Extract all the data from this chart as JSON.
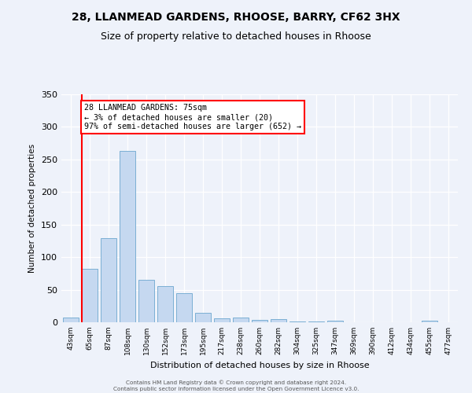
{
  "title": "28, LLANMEAD GARDENS, RHOOSE, BARRY, CF62 3HX",
  "subtitle": "Size of property relative to detached houses in Rhoose",
  "xlabel": "Distribution of detached houses by size in Rhoose",
  "ylabel": "Number of detached properties",
  "bar_labels": [
    "43sqm",
    "65sqm",
    "87sqm",
    "108sqm",
    "130sqm",
    "152sqm",
    "173sqm",
    "195sqm",
    "217sqm",
    "238sqm",
    "260sqm",
    "282sqm",
    "304sqm",
    "325sqm",
    "347sqm",
    "369sqm",
    "390sqm",
    "412sqm",
    "434sqm",
    "455sqm",
    "477sqm"
  ],
  "bar_values": [
    7,
    82,
    129,
    263,
    65,
    56,
    45,
    15,
    6,
    7,
    4,
    5,
    1,
    1,
    2,
    0,
    0,
    0,
    0,
    3,
    0
  ],
  "bar_color": "#c5d8f0",
  "bar_edge_color": "#7bafd4",
  "annotation_box_text": "28 LLANMEAD GARDENS: 75sqm\n← 3% of detached houses are smaller (20)\n97% of semi-detached houses are larger (652) →",
  "annotation_box_color": "white",
  "annotation_box_edge_color": "red",
  "annotation_line_color": "red",
  "ylim": [
    0,
    350
  ],
  "yticks": [
    0,
    50,
    100,
    150,
    200,
    250,
    300,
    350
  ],
  "background_color": "#eef2fa",
  "footer_line1": "Contains HM Land Registry data © Crown copyright and database right 2024.",
  "footer_line2": "Contains public sector information licensed under the Open Government Licence v3.0.",
  "title_fontsize": 10,
  "subtitle_fontsize": 9
}
